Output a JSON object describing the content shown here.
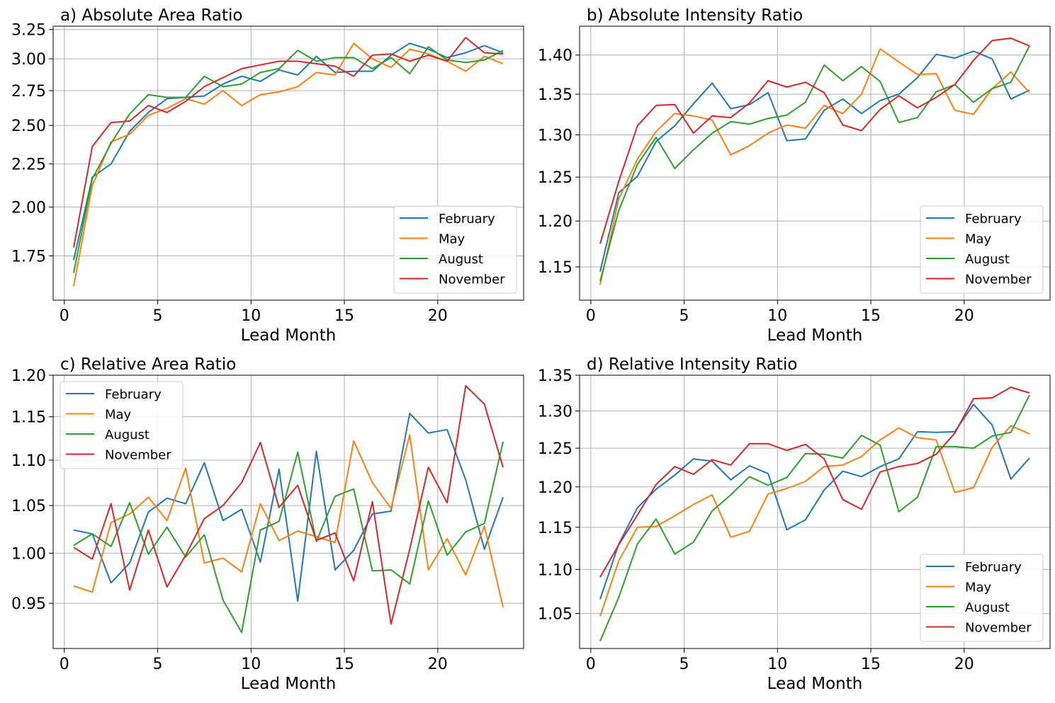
{
  "chart_data": [
    {
      "type": "line",
      "title": "a) Absolute Area Ratio",
      "xlabel": "Lead Month",
      "ylabel": "",
      "xlim": [
        -0.6,
        24.6
      ],
      "ylim": [
        1.55,
        3.28
      ],
      "yscale": "log",
      "xticks": [
        0,
        5,
        10,
        15,
        20
      ],
      "yticks": [
        1.75,
        2.0,
        2.25,
        2.5,
        2.75,
        3.0,
        3.25
      ],
      "ytick_labels": [
        "1.75",
        "2.00",
        "2.25",
        "2.50",
        "2.75",
        "3.00",
        "3.25"
      ],
      "grid": true,
      "legend_position": "lower-right",
      "x": [
        0.5,
        1.5,
        2.5,
        3.5,
        4.5,
        5.5,
        6.5,
        7.5,
        8.5,
        9.5,
        10.5,
        11.5,
        12.5,
        13.5,
        14.5,
        15.5,
        16.5,
        17.5,
        18.5,
        19.5,
        20.5,
        21.5,
        22.5,
        23.5
      ],
      "series": [
        {
          "name": "February",
          "color": "#1f77b4",
          "values": [
            1.73,
            2.17,
            2.25,
            2.46,
            2.59,
            2.69,
            2.7,
            2.71,
            2.8,
            2.86,
            2.82,
            2.91,
            2.87,
            3.02,
            2.89,
            2.9,
            2.9,
            3.03,
            3.13,
            3.08,
            3.01,
            3.05,
            3.11,
            3.05
          ]
        },
        {
          "name": "May",
          "color": "#ff7f0e",
          "values": [
            1.61,
            2.12,
            2.39,
            2.44,
            2.57,
            2.62,
            2.69,
            2.65,
            2.75,
            2.64,
            2.72,
            2.74,
            2.78,
            2.89,
            2.87,
            3.13,
            3.0,
            2.93,
            3.08,
            3.04,
            2.98,
            2.9,
            3.02,
            2.96
          ]
        },
        {
          "name": "August",
          "color": "#2ca02c",
          "values": [
            1.67,
            2.16,
            2.38,
            2.58,
            2.72,
            2.7,
            2.7,
            2.86,
            2.78,
            2.8,
            2.89,
            2.92,
            3.07,
            2.98,
            3.01,
            3.01,
            2.92,
            3.01,
            2.88,
            3.1,
            2.99,
            2.97,
            2.99,
            3.07
          ]
        },
        {
          "name": "November",
          "color": "#d62728",
          "values": [
            1.79,
            2.36,
            2.52,
            2.53,
            2.64,
            2.59,
            2.67,
            2.78,
            2.85,
            2.92,
            2.95,
            2.98,
            2.98,
            2.96,
            2.94,
            2.86,
            3.03,
            3.04,
            2.98,
            3.03,
            2.98,
            3.18,
            3.05,
            3.04
          ]
        }
      ]
    },
    {
      "type": "line",
      "title": "b) Absolute Intensity Ratio",
      "xlabel": "Lead Month",
      "ylabel": "",
      "xlim": [
        -0.6,
        24.6
      ],
      "ylim": [
        1.115,
        1.438
      ],
      "yscale": "log",
      "xticks": [
        0,
        5,
        10,
        15,
        20
      ],
      "yticks": [
        1.15,
        1.2,
        1.25,
        1.3,
        1.35,
        1.4
      ],
      "ytick_labels": [
        "1.15",
        "1.20",
        "1.25",
        "1.30",
        "1.35",
        "1.40"
      ],
      "grid": true,
      "legend_position": "lower-right",
      "x": [
        0.5,
        1.5,
        2.5,
        3.5,
        4.5,
        5.5,
        6.5,
        7.5,
        8.5,
        9.5,
        10.5,
        11.5,
        12.5,
        13.5,
        14.5,
        15.5,
        16.5,
        17.5,
        18.5,
        19.5,
        20.5,
        21.5,
        22.5,
        23.5
      ],
      "series": [
        {
          "name": "February",
          "color": "#1f77b4",
          "values": [
            1.145,
            1.232,
            1.251,
            1.292,
            1.311,
            1.338,
            1.364,
            1.332,
            1.337,
            1.352,
            1.293,
            1.295,
            1.33,
            1.344,
            1.326,
            1.342,
            1.35,
            1.371,
            1.401,
            1.396,
            1.405,
            1.395,
            1.344,
            1.355
          ]
        },
        {
          "name": "May",
          "color": "#ff7f0e",
          "values": [
            1.131,
            1.225,
            1.271,
            1.304,
            1.326,
            1.323,
            1.318,
            1.276,
            1.287,
            1.302,
            1.312,
            1.308,
            1.336,
            1.326,
            1.35,
            1.408,
            1.391,
            1.375,
            1.376,
            1.33,
            1.325,
            1.357,
            1.378,
            1.352
          ]
        },
        {
          "name": "August",
          "color": "#2ca02c",
          "values": [
            1.135,
            1.212,
            1.265,
            1.297,
            1.26,
            1.282,
            1.302,
            1.316,
            1.313,
            1.32,
            1.324,
            1.34,
            1.387,
            1.367,
            1.385,
            1.366,
            1.315,
            1.321,
            1.353,
            1.362,
            1.34,
            1.357,
            1.365,
            1.412
          ]
        },
        {
          "name": "November",
          "color": "#d62728",
          "values": [
            1.175,
            1.245,
            1.311,
            1.336,
            1.337,
            1.302,
            1.323,
            1.321,
            1.339,
            1.367,
            1.359,
            1.365,
            1.352,
            1.312,
            1.305,
            1.331,
            1.348,
            1.333,
            1.346,
            1.362,
            1.393,
            1.419,
            1.422,
            1.412
          ]
        }
      ]
    },
    {
      "type": "line",
      "title": "c) Relative Area Ratio",
      "xlabel": "Lead Month",
      "ylabel": "",
      "xlim": [
        -0.6,
        24.6
      ],
      "ylim": [
        0.907,
        1.2
      ],
      "yscale": "log",
      "xticks": [
        0,
        5,
        10,
        15,
        20
      ],
      "yticks": [
        0.95,
        1.0,
        1.05,
        1.1,
        1.15,
        1.2
      ],
      "ytick_labels": [
        "0.95",
        "1.00",
        "1.05",
        "1.10",
        "1.15",
        "1.20"
      ],
      "grid": true,
      "legend_position": "upper-left",
      "x": [
        0.5,
        1.5,
        2.5,
        3.5,
        4.5,
        5.5,
        6.5,
        7.5,
        8.5,
        9.5,
        10.5,
        11.5,
        12.5,
        13.5,
        14.5,
        15.5,
        16.5,
        17.5,
        18.5,
        19.5,
        20.5,
        21.5,
        22.5,
        23.5
      ],
      "series": [
        {
          "name": "February",
          "color": "#1f77b4",
          "values": [
            1.024,
            1.02,
            0.97,
            0.99,
            1.043,
            1.058,
            1.052,
            1.097,
            1.034,
            1.046,
            0.991,
            1.09,
            0.952,
            1.11,
            0.983,
            1.003,
            1.041,
            1.044,
            1.154,
            1.131,
            1.135,
            1.078,
            1.004,
            1.059
          ]
        },
        {
          "name": "May",
          "color": "#ff7f0e",
          "values": [
            0.967,
            0.961,
            1.032,
            1.041,
            1.059,
            1.034,
            1.091,
            0.99,
            0.995,
            0.981,
            1.052,
            1.013,
            1.023,
            1.017,
            1.011,
            1.122,
            1.075,
            1.047,
            1.129,
            0.983,
            1.015,
            0.978,
            1.028,
            0.946
          ]
        },
        {
          "name": "August",
          "color": "#2ca02c",
          "values": [
            1.008,
            1.02,
            1.007,
            1.053,
            0.999,
            1.027,
            0.996,
            1.019,
            0.953,
            0.922,
            1.024,
            1.033,
            1.109,
            1.012,
            1.06,
            1.068,
            0.982,
            0.983,
            0.969,
            1.055,
            0.998,
            1.022,
            1.031,
            1.121
          ]
        },
        {
          "name": "November",
          "color": "#d62728",
          "values": [
            1.006,
            0.994,
            1.052,
            0.963,
            1.024,
            0.966,
            0.998,
            1.036,
            1.05,
            1.075,
            1.12,
            1.048,
            1.072,
            1.013,
            1.021,
            0.972,
            1.054,
            0.93,
            1.004,
            1.092,
            1.053,
            1.187,
            1.165,
            1.092
          ]
        }
      ]
    },
    {
      "type": "line",
      "title": "d) Relative Intensity Ratio",
      "xlabel": "Lead Month",
      "ylabel": "",
      "xlim": [
        -0.6,
        24.6
      ],
      "ylim": [
        1.012,
        1.35
      ],
      "yscale": "log",
      "xticks": [
        0,
        5,
        10,
        15,
        20
      ],
      "yticks": [
        1.05,
        1.1,
        1.15,
        1.2,
        1.25,
        1.3,
        1.35
      ],
      "ytick_labels": [
        "1.05",
        "1.10",
        "1.15",
        "1.20",
        "1.25",
        "1.30",
        "1.35"
      ],
      "grid": true,
      "legend_position": "lower-right",
      "x": [
        0.5,
        1.5,
        2.5,
        3.5,
        4.5,
        5.5,
        6.5,
        7.5,
        8.5,
        9.5,
        10.5,
        11.5,
        12.5,
        13.5,
        14.5,
        15.5,
        16.5,
        17.5,
        18.5,
        19.5,
        20.5,
        21.5,
        22.5,
        23.5
      ],
      "series": [
        {
          "name": "February",
          "color": "#1f77b4",
          "values": [
            1.066,
            1.13,
            1.174,
            1.197,
            1.215,
            1.236,
            1.233,
            1.209,
            1.227,
            1.217,
            1.147,
            1.159,
            1.196,
            1.22,
            1.213,
            1.226,
            1.236,
            1.272,
            1.271,
            1.272,
            1.309,
            1.281,
            1.21,
            1.237
          ]
        },
        {
          "name": "May",
          "color": "#ff7f0e",
          "values": [
            1.047,
            1.11,
            1.15,
            1.151,
            1.164,
            1.178,
            1.19,
            1.138,
            1.145,
            1.191,
            1.198,
            1.207,
            1.226,
            1.228,
            1.239,
            1.261,
            1.277,
            1.264,
            1.261,
            1.193,
            1.199,
            1.251,
            1.28,
            1.269
          ]
        },
        {
          "name": "August",
          "color": "#2ca02c",
          "values": [
            1.02,
            1.068,
            1.13,
            1.16,
            1.118,
            1.132,
            1.17,
            1.19,
            1.213,
            1.202,
            1.212,
            1.243,
            1.242,
            1.237,
            1.267,
            1.254,
            1.169,
            1.187,
            1.252,
            1.252,
            1.25,
            1.266,
            1.271,
            1.322
          ]
        },
        {
          "name": "November",
          "color": "#d62728",
          "values": [
            1.091,
            1.129,
            1.165,
            1.203,
            1.226,
            1.216,
            1.235,
            1.228,
            1.256,
            1.256,
            1.247,
            1.255,
            1.236,
            1.184,
            1.172,
            1.219,
            1.226,
            1.23,
            1.242,
            1.27,
            1.317,
            1.318,
            1.333,
            1.325
          ]
        }
      ]
    }
  ]
}
